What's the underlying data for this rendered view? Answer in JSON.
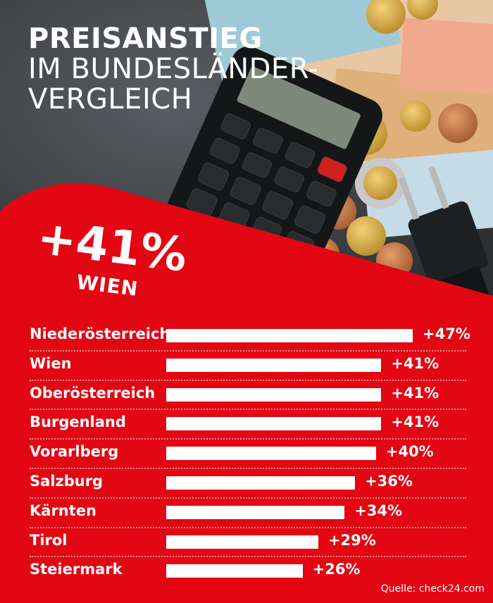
{
  "title": {
    "line1": "PREISANSTIEG",
    "line2": "IM BUNDESLÄNDER-",
    "line3": "VERGLEICH"
  },
  "highlight": {
    "value": "+41%",
    "label": "WIEN"
  },
  "source": "Quelle: check24.com",
  "colors": {
    "background": "#e30613",
    "bars": "#ffffff",
    "text": "#ffffff"
  },
  "chart_data": {
    "type": "bar",
    "orientation": "horizontal",
    "categories": [
      "Niederösterreich",
      "Wien",
      "Oberösterreich",
      "Burgenland",
      "Vorarlberg",
      "Salzburg",
      "Kärnten",
      "Tirol",
      "Steiermark"
    ],
    "values": [
      47,
      41,
      41,
      41,
      40,
      36,
      34,
      29,
      26
    ],
    "value_labels": [
      "+47%",
      "+41%",
      "+41%",
      "+41%",
      "+40%",
      "+36%",
      "+34%",
      "+29%",
      "+26%"
    ],
    "title": "PREISANSTIEG IM BUNDESLÄNDER-VERGLEICH",
    "xlim": [
      0,
      47
    ],
    "grid": false,
    "legend": "none"
  }
}
